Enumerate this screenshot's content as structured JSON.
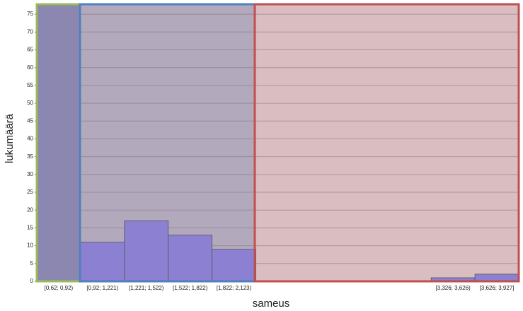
{
  "chart_data": {
    "type": "bar",
    "xlabel": "sameus",
    "ylabel": "lukumäärä",
    "categories": [
      "[0,62; 0,92)",
      "[0,92; 1,221)",
      "[1,221; 1,522)",
      "[1,522; 1,822)",
      "[1,822; 2,123)",
      null,
      null,
      null,
      null,
      "[3,326; 3,626)",
      "[3,626; 3,927]"
    ],
    "values": [
      78,
      11,
      17,
      13,
      9,
      0,
      0,
      0,
      0,
      1,
      2
    ],
    "color": "#8b80d2",
    "ylim": [
      0,
      78
    ],
    "yticks": [
      0,
      5,
      10,
      15,
      20,
      25,
      30,
      35,
      40,
      45,
      50,
      55,
      60,
      65,
      70,
      75
    ],
    "grid": true
  }
}
